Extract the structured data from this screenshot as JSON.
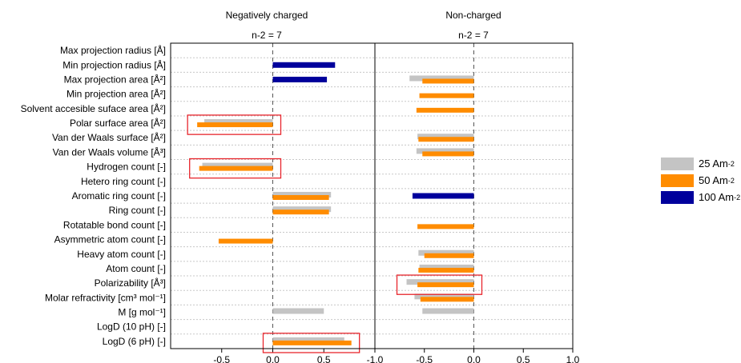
{
  "chart_data": [
    {
      "type": "bar",
      "orientation": "horizontal",
      "title": "Negatively charged",
      "subtitle": "n-2 = 7",
      "xlim": [
        -1.0,
        1.0
      ],
      "xticks": [
        "-0.5",
        "0.0",
        "0.5"
      ],
      "categories": [
        "Max projection radius [Å]",
        "Min projection radius [Å]",
        "Max projection area [Å²]",
        "Min projection area [Å²]",
        "Solvent accesible suface area [Å²]",
        "Polar surface area [Å²]",
        "Van der Waals surface  [Å²]",
        "Van der Waals volume [Å³]",
        "Hydrogen count [-]",
        "Hetero ring count [-]",
        "Aromatic ring count [-]",
        "Ring count [-]",
        "Rotatable bond count [-]",
        "Asymmetric atom count [-]",
        "Heavy atom count [-]",
        "Atom count [-]",
        "Polarizability  [Å³]",
        "Molar refractivity [cm³ mol⁻¹]",
        "M [g mol⁻¹]",
        "LogD (10 pH) [-]",
        "LogD (6 pH) [-]"
      ],
      "series": [
        {
          "name": "25 Am-2",
          "values": [
            null,
            null,
            null,
            null,
            null,
            -0.67,
            null,
            null,
            -0.69,
            null,
            0.57,
            0.57,
            null,
            null,
            null,
            null,
            null,
            null,
            0.5,
            null,
            0.7
          ]
        },
        {
          "name": "50 Am-2",
          "values": [
            null,
            null,
            null,
            null,
            null,
            -0.74,
            null,
            null,
            -0.72,
            null,
            0.55,
            0.55,
            null,
            -0.53,
            null,
            null,
            null,
            null,
            null,
            null,
            0.77
          ]
        },
        {
          "name": "100 Am-2",
          "values": [
            null,
            0.61,
            0.53,
            null,
            null,
            null,
            null,
            null,
            null,
            null,
            null,
            null,
            null,
            null,
            null,
            null,
            null,
            null,
            null,
            null,
            null
          ]
        }
      ],
      "highlighted": [
        "Polar surface area [Å²]",
        "Hydrogen count [-]",
        "LogD (6 pH) [-]"
      ]
    },
    {
      "type": "bar",
      "orientation": "horizontal",
      "title": "Non-charged",
      "subtitle": "n-2 = 7",
      "xlim": [
        -1.0,
        1.0
      ],
      "xticks": [
        "-1.0",
        "-0.5",
        "0.0",
        "0.5",
        "1.0"
      ],
      "series": [
        {
          "name": "25 Am-2",
          "values": [
            null,
            null,
            -0.65,
            null,
            null,
            null,
            -0.57,
            -0.58,
            null,
            null,
            null,
            null,
            null,
            null,
            -0.56,
            -0.55,
            -0.68,
            -0.6,
            -0.52,
            null,
            null
          ]
        },
        {
          "name": "50 Am-2",
          "values": [
            null,
            null,
            -0.52,
            -0.55,
            -0.58,
            null,
            -0.56,
            -0.52,
            null,
            null,
            null,
            null,
            -0.57,
            null,
            -0.5,
            -0.56,
            -0.57,
            -0.54,
            null,
            null,
            null
          ]
        },
        {
          "name": "100 Am-2",
          "values": [
            null,
            null,
            null,
            null,
            null,
            null,
            null,
            null,
            null,
            null,
            -0.62,
            null,
            null,
            null,
            null,
            null,
            null,
            null,
            null,
            null,
            null
          ]
        }
      ],
      "highlighted": [
        "Polarizability  [Å³]"
      ]
    }
  ],
  "legend": [
    {
      "label": "25 Am",
      "sup": "-2",
      "color": "#c4c4c4"
    },
    {
      "label": "50 Am",
      "sup": "-2",
      "color": "#ff8c00"
    },
    {
      "label": "100 Am",
      "sup": "-2",
      "color": "#00009c"
    }
  ],
  "colors": {
    "series": [
      "#c4c4c4",
      "#ff8c00",
      "#00009c"
    ],
    "highlight": "#e8262d"
  }
}
